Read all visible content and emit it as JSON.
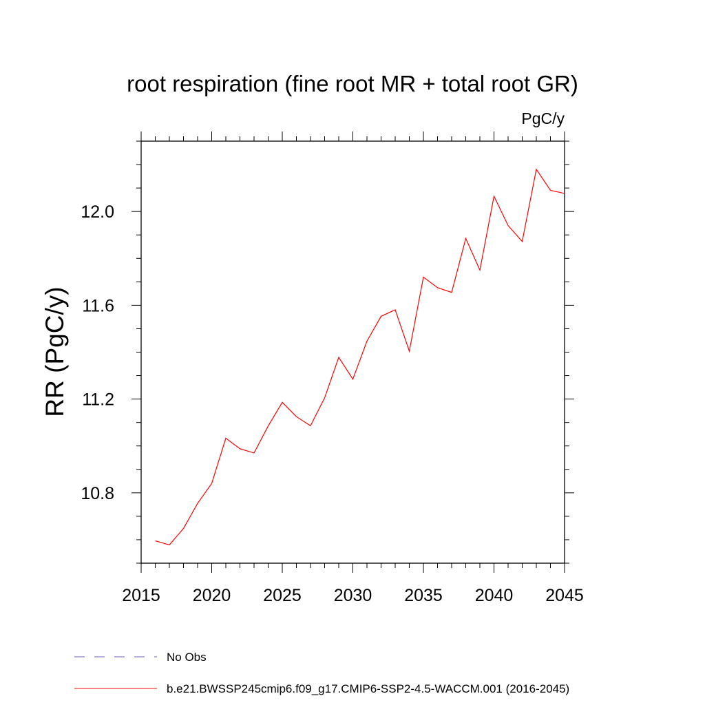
{
  "chart_data": {
    "type": "line",
    "title": "root respiration (fine root MR + total root GR)",
    "units": "PgC/y",
    "ylabel": "RR  (PgC/y)",
    "xlabel": "",
    "xlim": [
      2015,
      2045
    ],
    "ylim": [
      10.5,
      12.3
    ],
    "x_major_ticks": [
      2015,
      2020,
      2025,
      2030,
      2035,
      2040,
      2045
    ],
    "x_minor_step": 1,
    "y_major_ticks": [
      10.8,
      11.2,
      11.6,
      12.0
    ],
    "y_tick_labels": [
      "10.8",
      "11.2",
      "11.6",
      "12.0"
    ],
    "y_minor_step": 0.1,
    "grid": false,
    "legend_position": "bottom",
    "x": [
      2016,
      2017,
      2018,
      2019,
      2020,
      2021,
      2022,
      2023,
      2024,
      2025,
      2026,
      2027,
      2028,
      2029,
      2030,
      2031,
      2032,
      2033,
      2034,
      2035,
      2036,
      2037,
      2038,
      2039,
      2040,
      2041,
      2042,
      2043,
      2044,
      2045
    ],
    "series": [
      {
        "name": "b.e21.BWSSP245cmip6.f09_g17.CMIP6-SSP2-4.5-WACCM.001 (2016-2045)",
        "color": "#ff0000",
        "dash": "solid",
        "values": [
          10.595,
          10.578,
          10.648,
          10.755,
          10.84,
          11.033,
          10.988,
          10.97,
          11.085,
          11.186,
          11.125,
          11.086,
          11.205,
          11.378,
          11.285,
          11.447,
          11.553,
          11.581,
          11.404,
          11.72,
          11.675,
          11.655,
          11.885,
          11.75,
          12.065,
          11.94,
          11.872,
          12.18,
          12.09,
          12.077
        ]
      }
    ],
    "legend": [
      {
        "label": "No Obs",
        "color": "#6a5acd",
        "dash": "dashed"
      },
      {
        "label": "b.e21.BWSSP245cmip6.f09_g17.CMIP6-SSP2-4.5-WACCM.001 (2016-2045)",
        "color": "#ff0000",
        "dash": "solid"
      }
    ]
  }
}
